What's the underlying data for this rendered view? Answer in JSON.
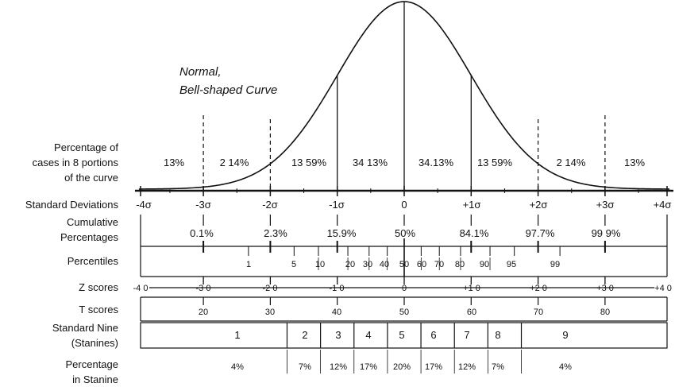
{
  "curve_title": [
    "Normal,",
    "Bell-shaped Curve"
  ],
  "portions_label": [
    "Percentage of",
    "cases in 8 portions",
    "of the curve"
  ],
  "portion_pcts": [
    "13%",
    "2 14%",
    "13 59%",
    "34 13%",
    "34.13%",
    "13 59%",
    "2 14%",
    "13%"
  ],
  "rows": {
    "std_dev": {
      "label": "Standard Deviations",
      "ticks": [
        "-4σ",
        "-3σ",
        "-2σ",
        "-1σ",
        "0",
        "+1σ",
        "+2σ",
        "+3σ",
        "+4σ"
      ]
    },
    "cumulative": {
      "label": [
        "Cumulative",
        "Percentages"
      ],
      "values": [
        "0.1%",
        "2.3%",
        "15.9%",
        "50%",
        "84.1%",
        "97.7%",
        "99 9%"
      ]
    },
    "percentiles": {
      "label": "Percentiles",
      "values": [
        "1",
        "5",
        "10",
        "20",
        "30",
        "40",
        "50",
        "60",
        "70",
        "80",
        "90",
        "95",
        "99"
      ]
    },
    "z_scores": {
      "label": "Z scores",
      "values": [
        "-4 0",
        "-3 0",
        "-2 0",
        "-1 0",
        "0",
        "+1 0",
        "+2 0",
        "+3 0",
        "+4 0"
      ]
    },
    "t_scores": {
      "label": "T scores",
      "values": [
        "20",
        "30",
        "40",
        "50",
        "60",
        "70",
        "80"
      ]
    },
    "stanines": {
      "label": [
        "Standard Nine",
        "(Stanines)"
      ],
      "values": [
        "1",
        "2",
        "3",
        "4",
        "5",
        "6",
        "7",
        "8",
        "9"
      ]
    },
    "stanine_pct": {
      "label": [
        "Percentage",
        "in Stanine"
      ],
      "values": [
        "4%",
        "7%",
        "12%",
        "17%",
        "20%",
        "17%",
        "12%",
        "7%",
        "4%"
      ]
    }
  }
}
